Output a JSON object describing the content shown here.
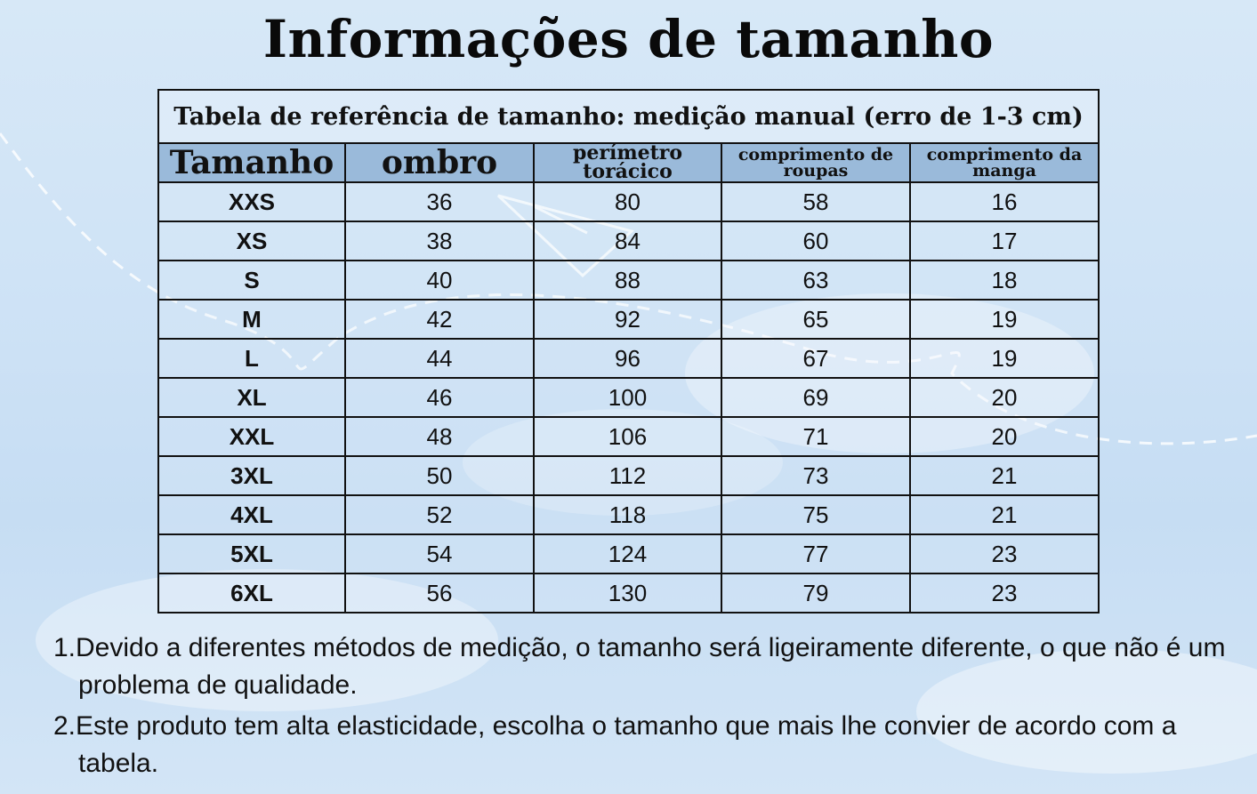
{
  "title": "Informações de tamanho",
  "table": {
    "caption": "Tabela de referência de tamanho: medição manual (erro de 1-3 cm)",
    "headers": [
      "Tamanho",
      "ombro",
      "perímetro torácico",
      "comprimento de roupas",
      "comprimento da manga"
    ],
    "rows": [
      [
        "XXS",
        "36",
        "80",
        "58",
        "16"
      ],
      [
        "XS",
        "38",
        "84",
        "60",
        "17"
      ],
      [
        "S",
        "40",
        "88",
        "63",
        "18"
      ],
      [
        "M",
        "42",
        "92",
        "65",
        "19"
      ],
      [
        "L",
        "44",
        "96",
        "67",
        "19"
      ],
      [
        "XL",
        "46",
        "100",
        "69",
        "20"
      ],
      [
        "XXL",
        "48",
        "106",
        "71",
        "20"
      ],
      [
        "3XL",
        "50",
        "112",
        "73",
        "21"
      ],
      [
        "4XL",
        "52",
        "118",
        "75",
        "21"
      ],
      [
        "5XL",
        "54",
        "124",
        "77",
        "23"
      ],
      [
        "6XL",
        "56",
        "130",
        "79",
        "23"
      ]
    ]
  },
  "notes": [
    "1.Devido a diferentes métodos de medição, o tamanho será ligeiramente diferente, o que não é um problema de qualidade.",
    "2.Este produto tem alta elasticidade, escolha o tamanho que mais lhe convier de acordo com a tabela."
  ]
}
